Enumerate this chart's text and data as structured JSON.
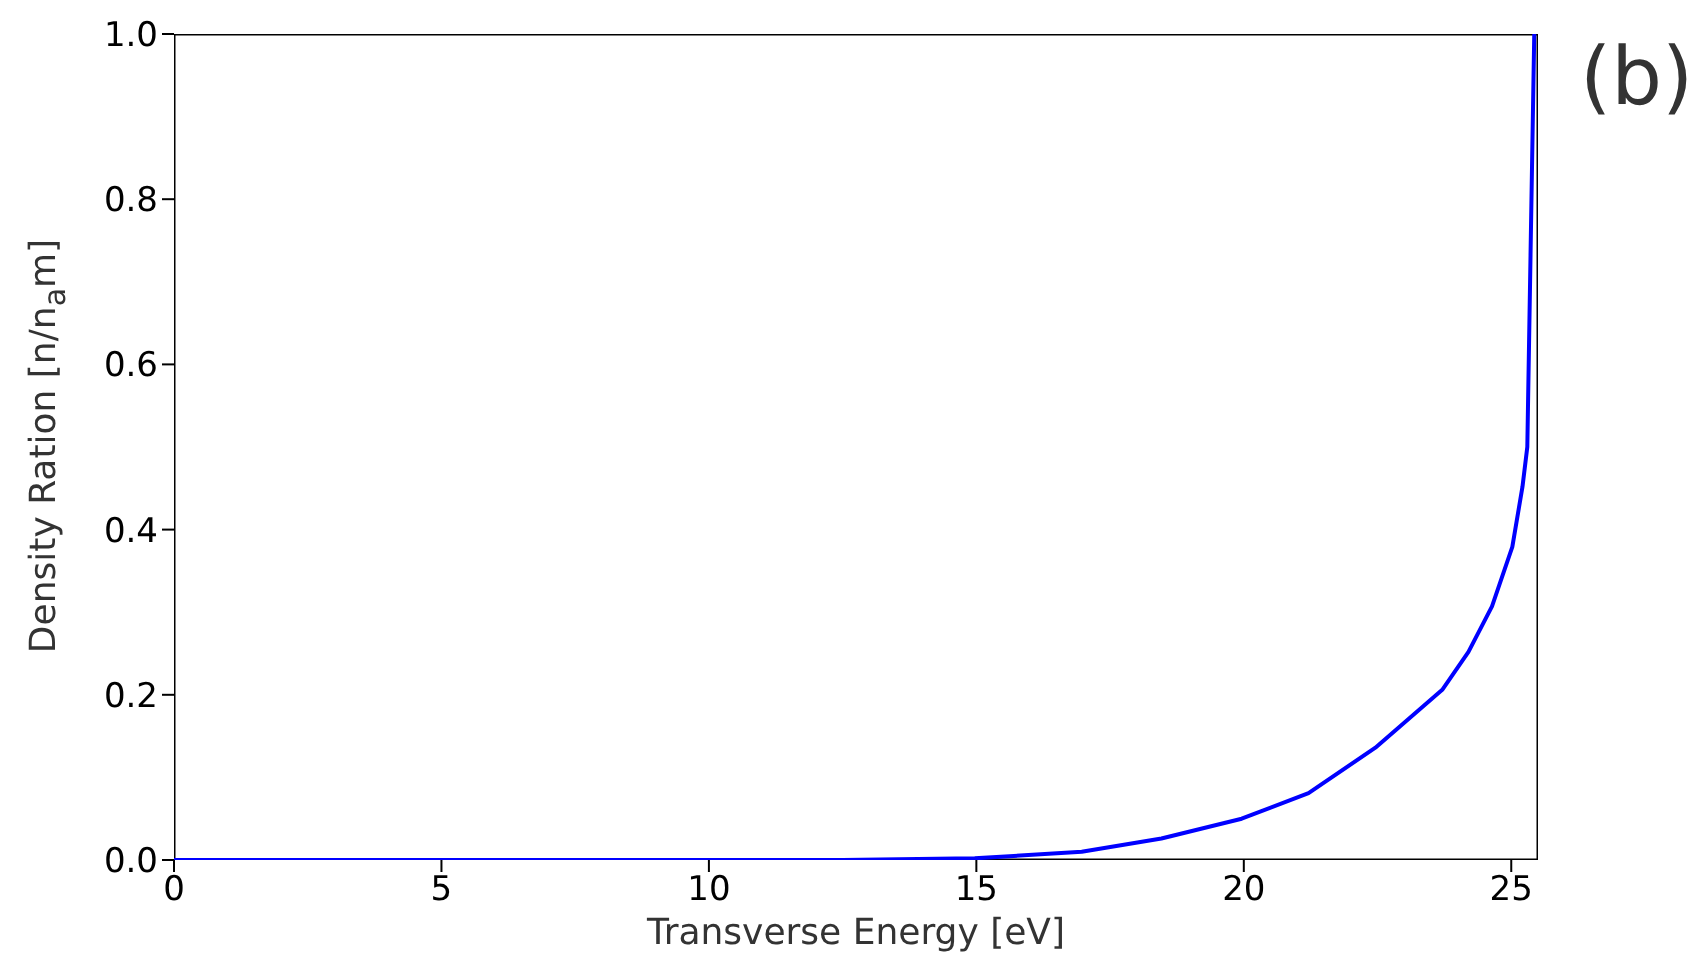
{
  "chart_data": {
    "type": "line",
    "xlabel": "Transverse Energy [eV]",
    "ylabel": "Density Ration [n/n$_{a}$m]",
    "annotations": [
      "(b)"
    ],
    "x": [
      0,
      5,
      10,
      12.5,
      14.97,
      16.97,
      18.46,
      19.96,
      21.21,
      22.46,
      23.71,
      24.2,
      24.64,
      25.02,
      25.21,
      25.3,
      25.43
    ],
    "series": [
      {
        "color": "#0000ff",
        "values": [
          0,
          0,
          0,
          0,
          0.002,
          0.01,
          0.026,
          0.05,
          0.081,
          0.136,
          0.206,
          0.252,
          0.307,
          0.379,
          0.452,
          0.5,
          1.0
        ]
      }
    ],
    "xlim": [
      0,
      25.5
    ],
    "xticks": [
      0,
      5,
      10,
      15,
      20,
      25
    ],
    "ylim": [
      0,
      1
    ],
    "yticks": [
      {
        "value": 0,
        "label": "0.0"
      },
      0.2,
      0.4,
      0.6,
      0.8,
      {
        "value": 1,
        "label": "1.0"
      }
    ],
    "grid": false,
    "legend": false,
    "marker": "none",
    "line_style": "solid"
  }
}
